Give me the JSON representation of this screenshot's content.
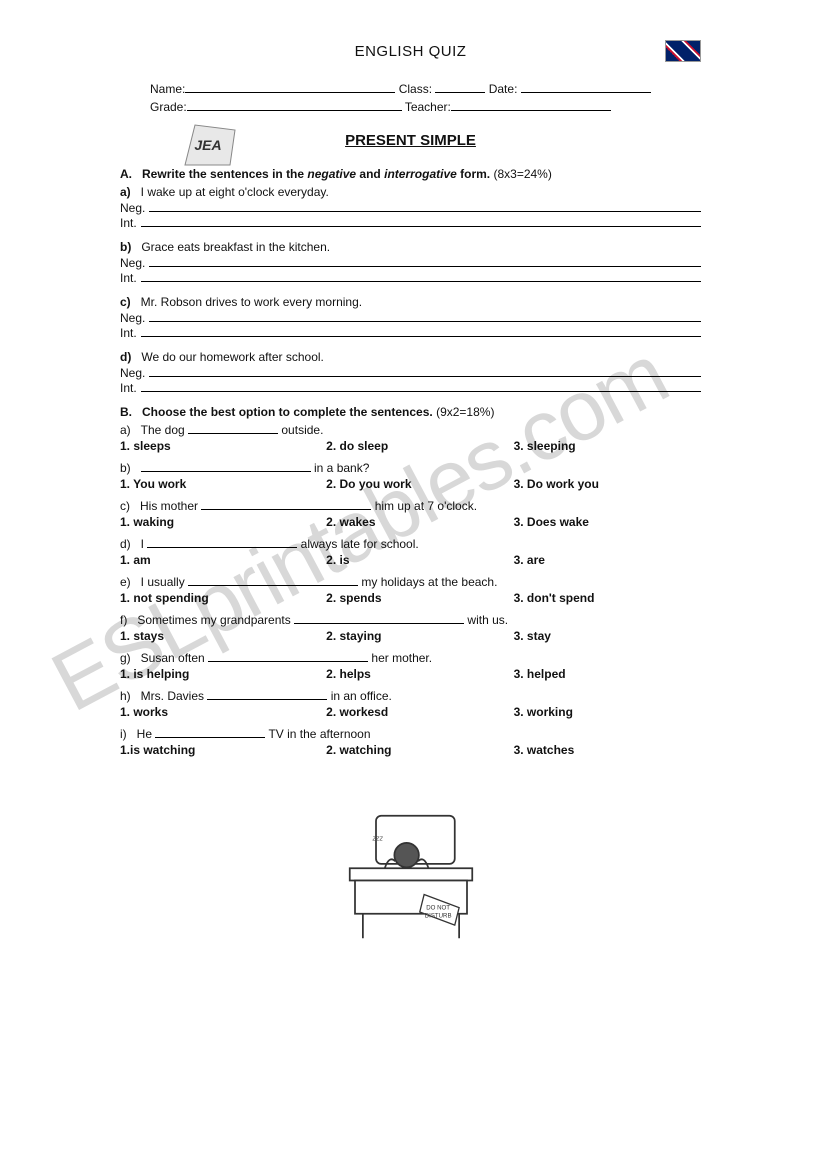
{
  "header": {
    "quiz_title": "ENGLISH QUIZ"
  },
  "info": {
    "name_label": "Name:",
    "class_label": "Class:",
    "date_label": "Date:",
    "grade_label": "Grade:",
    "teacher_label": "Teacher:"
  },
  "title": "PRESENT SIMPLE",
  "sectionA": {
    "label": "A.",
    "instruction_pre": "Rewrite the sentences in the ",
    "word_negative": "negative",
    "instruction_mid": " and ",
    "word_interrogative": "interrogative",
    "instruction_post": " form.",
    "points": " (8x3=24%)",
    "neg_label": "Neg.",
    "int_label": "Int.",
    "items": [
      {
        "letter": "a)",
        "text": "I wake up at eight o'clock everyday."
      },
      {
        "letter": "b)",
        "text": "Grace eats breakfast in the kitchen."
      },
      {
        "letter": "c)",
        "text": "Mr. Robson drives to work every morning."
      },
      {
        "letter": "d)",
        "text": "We do our homework after school."
      }
    ]
  },
  "sectionB": {
    "label": "B.",
    "instruction": "Choose the best option to complete the sentences.",
    "points": " (9x2=18%)",
    "items": [
      {
        "letter": "a)",
        "pre": "The dog ",
        "post": " outside.",
        "blank_w": 90,
        "opts": [
          "1. sleeps",
          "2. do sleep",
          "3. sleeping"
        ]
      },
      {
        "letter": "b)",
        "pre": "",
        "post": " in a bank?",
        "blank_w": 170,
        "opts": [
          "1. You work",
          "2. Do you work",
          "3. Do work you"
        ]
      },
      {
        "letter": "c)",
        "pre": "His mother ",
        "post": " him up at 7 o'clock.",
        "blank_w": 170,
        "opts": [
          "1. waking",
          "2. wakes",
          "3. Does wake"
        ]
      },
      {
        "letter": "d)",
        "pre": "I ",
        "post": " always late for school.",
        "blank_w": 150,
        "opts": [
          "1. am",
          "2. is",
          "3. are"
        ]
      },
      {
        "letter": "e)",
        "pre": "I usually ",
        "post": " my holidays at the beach.",
        "blank_w": 170,
        "opts": [
          "1. not spending",
          "2. spends",
          "3. don't spend"
        ]
      },
      {
        "letter": "f)",
        "pre": "Sometimes my grandparents ",
        "post": " with us.",
        "blank_w": 170,
        "opts": [
          "1. stays",
          "2. staying",
          "3. stay"
        ]
      },
      {
        "letter": "g)",
        "pre": "Susan often ",
        "post": " her mother.",
        "blank_w": 160,
        "opts": [
          "1. is helping",
          "2. helps",
          "3. helped"
        ]
      },
      {
        "letter": "h)",
        "pre": "Mrs. Davies ",
        "post": " in an office.",
        "blank_w": 120,
        "opts": [
          "1. works",
          "2. workesd",
          "3. working"
        ]
      },
      {
        "letter": "i)",
        "pre": "He ",
        "post": " TV in the afternoon",
        "blank_w": 110,
        "opts": [
          "1.is watching",
          "2. watching",
          "3. watches"
        ]
      }
    ]
  },
  "watermark": "ESLprintables.com",
  "illustration": {
    "sign_line1": "DO NOT",
    "sign_line2": "DISTURB"
  }
}
